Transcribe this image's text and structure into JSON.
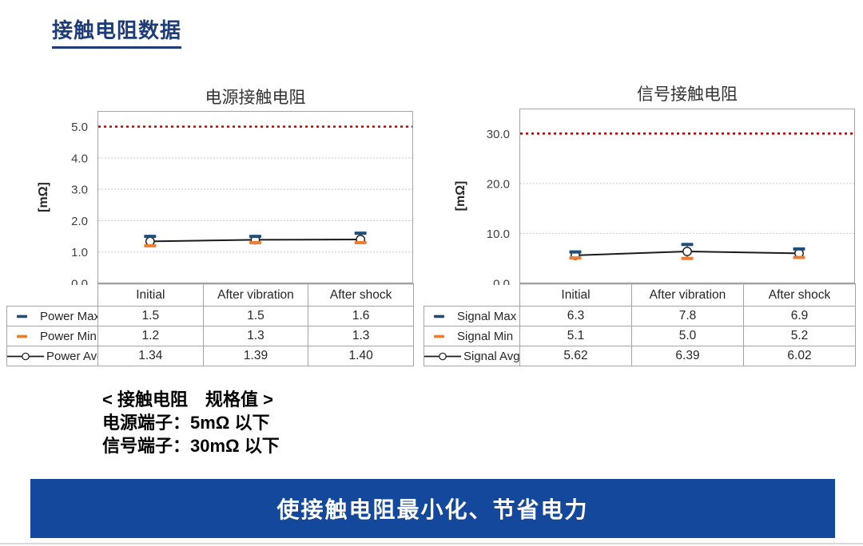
{
  "page": {
    "title": "接触电阻数据",
    "banner_text": "使接触电阻最小化、节省电力"
  },
  "spec": {
    "heading": "< 接触电阻　规格值 >",
    "lines": [
      "电源端子：5mΩ 以下",
      "信号端子：30mΩ 以下"
    ]
  },
  "colors": {
    "title_blue": "#1E3C78",
    "banner_blue": "#14489C",
    "spec_line_red": "#C00000",
    "max_marker_blue": "#1F4E79",
    "min_marker_orange": "#ED7D31",
    "avg_line_black": "#1A1A1A",
    "grid_gray": "#C8C8C8",
    "border_gray": "#A6A6A6",
    "axis_dark_gray": "#7F7F7F"
  },
  "chart_data": [
    {
      "type": "line",
      "title": "电源接触电阻",
      "ylabel": "[mΩ]",
      "categories": [
        "Initial",
        "After vibration",
        "After shock"
      ],
      "ylim": [
        0,
        5.5
      ],
      "yticks": [
        0,
        1,
        2,
        3,
        4,
        5
      ],
      "ytick_labels": [
        "0.0",
        "1.0",
        "2.0",
        "3.0",
        "4.0",
        "5.0"
      ],
      "spec_limit": 5.0,
      "grid": "horizontal-dotted",
      "legend_position": "table-left",
      "series": [
        {
          "name": "Power Max",
          "marker": "dash",
          "color": "#1F4E79",
          "values": [
            1.5,
            1.5,
            1.6
          ],
          "labels": [
            "1.5",
            "1.5",
            "1.6"
          ]
        },
        {
          "name": "Power Min",
          "marker": "dash",
          "color": "#ED7D31",
          "values": [
            1.2,
            1.3,
            1.3
          ],
          "labels": [
            "1.2",
            "1.3",
            "1.3"
          ]
        },
        {
          "name": "Power Avg",
          "marker": "line-open-circle",
          "color": "#1A1A1A",
          "values": [
            1.34,
            1.39,
            1.4
          ],
          "labels": [
            "1.34",
            "1.39",
            "1.40"
          ]
        }
      ]
    },
    {
      "type": "line",
      "title": "信号接触电阻",
      "ylabel": "[mΩ]",
      "categories": [
        "Initial",
        "After vibration",
        "After shock"
      ],
      "ylim": [
        0,
        35
      ],
      "yticks": [
        0,
        10,
        20,
        30
      ],
      "ytick_labels": [
        "0.0",
        "10.0",
        "20.0",
        "30.0"
      ],
      "spec_limit": 30.0,
      "grid": "horizontal-dotted",
      "legend_position": "table-left",
      "series": [
        {
          "name": "Signal Max",
          "marker": "dash",
          "color": "#1F4E79",
          "values": [
            6.3,
            7.8,
            6.9
          ],
          "labels": [
            "6.3",
            "7.8",
            "6.9"
          ]
        },
        {
          "name": "Signal Min",
          "marker": "dash",
          "color": "#ED7D31",
          "values": [
            5.1,
            5.0,
            5.2
          ],
          "labels": [
            "5.1",
            "5.0",
            "5.2"
          ]
        },
        {
          "name": "Signal Avg",
          "marker": "line-open-circle",
          "color": "#1A1A1A",
          "values": [
            5.62,
            6.39,
            6.02
          ],
          "labels": [
            "5.62",
            "6.39",
            "6.02"
          ]
        }
      ]
    }
  ]
}
